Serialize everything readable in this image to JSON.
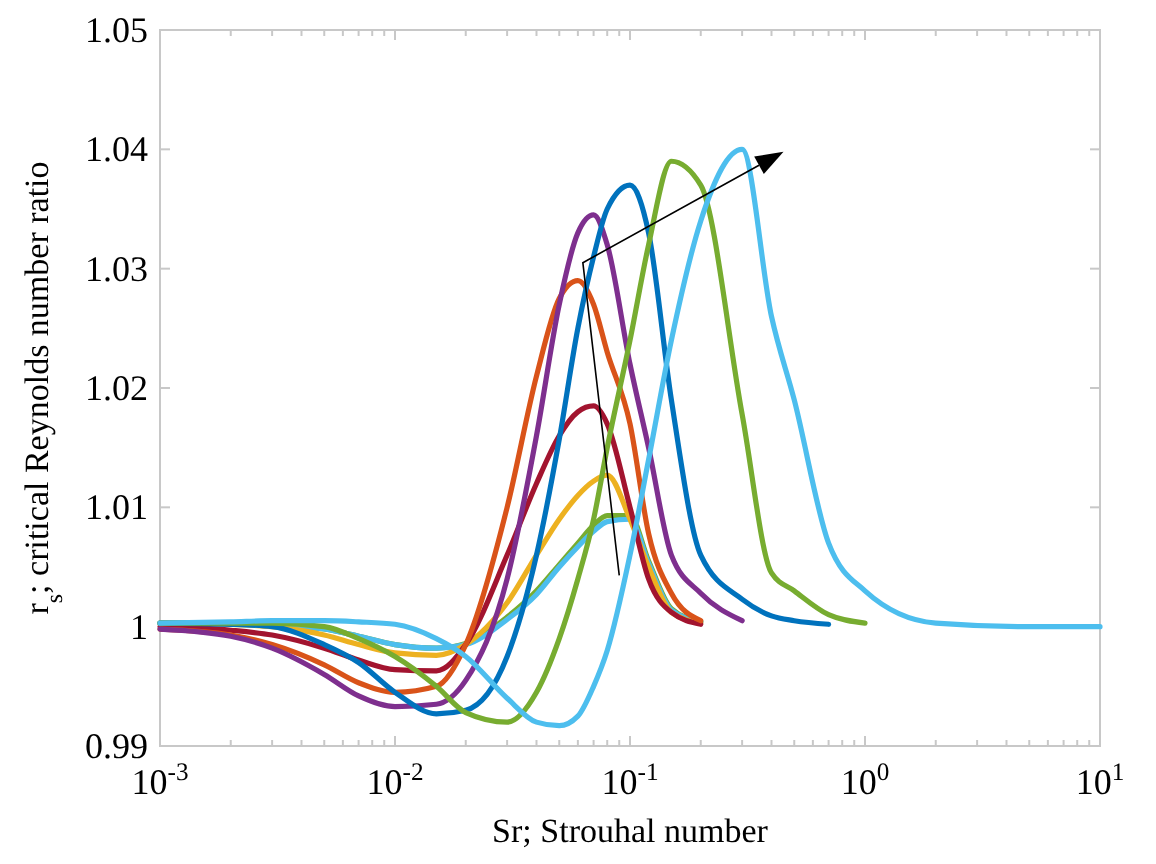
{
  "chart_data": {
    "type": "line",
    "xlabel": "Sr; Strouhal number",
    "ylabel": "r$_{s}$; critical Reynolds number ratio",
    "log": "x",
    "grid": false,
    "marker": "none",
    "line_style": "solid",
    "x": [
      0.001,
      0.002,
      0.003,
      0.005,
      0.007,
      0.01,
      0.015,
      0.02,
      0.03,
      0.04,
      0.05,
      0.06,
      0.07,
      0.08,
      0.1,
      0.12,
      0.15,
      0.2,
      0.3,
      0.4,
      0.5,
      0.7,
      1,
      2,
      5,
      10
    ],
    "xlim": [
      0.001,
      10
    ],
    "ylim": [
      0.99,
      1.05
    ],
    "xticks": [
      {
        "value": 0.001,
        "label": "10$^{-3}$"
      },
      {
        "value": 0.002,
        "label": null
      },
      {
        "value": 0.003,
        "label": null
      },
      {
        "value": 0.004,
        "label": null
      },
      {
        "value": 0.005,
        "label": null
      },
      {
        "value": 0.006,
        "label": null
      },
      {
        "value": 0.007,
        "label": null
      },
      {
        "value": 0.008,
        "label": null
      },
      {
        "value": 0.009,
        "label": null
      },
      {
        "value": 0.01,
        "label": "10$^{-2}$"
      },
      {
        "value": 0.02,
        "label": null
      },
      {
        "value": 0.03,
        "label": null
      },
      {
        "value": 0.04,
        "label": null
      },
      {
        "value": 0.05,
        "label": null
      },
      {
        "value": 0.06,
        "label": null
      },
      {
        "value": 0.07,
        "label": null
      },
      {
        "value": 0.08,
        "label": null
      },
      {
        "value": 0.09,
        "label": null
      },
      {
        "value": 0.1,
        "label": "10$^{-1}$"
      },
      {
        "value": 0.2,
        "label": null
      },
      {
        "value": 0.3,
        "label": null
      },
      {
        "value": 0.4,
        "label": null
      },
      {
        "value": 0.5,
        "label": null
      },
      {
        "value": 0.6,
        "label": null
      },
      {
        "value": 0.7,
        "label": null
      },
      {
        "value": 0.8,
        "label": null
      },
      {
        "value": 0.9,
        "label": null
      },
      {
        "value": 1,
        "label": "10$^{0}$"
      },
      {
        "value": 2,
        "label": null
      },
      {
        "value": 3,
        "label": null
      },
      {
        "value": 4,
        "label": null
      },
      {
        "value": 5,
        "label": null
      },
      {
        "value": 6,
        "label": null
      },
      {
        "value": 7,
        "label": null
      },
      {
        "value": 8,
        "label": null
      },
      {
        "value": 9,
        "label": null
      },
      {
        "value": 10,
        "label": "10$^{1}$"
      }
    ],
    "yticks": [
      0.99,
      1,
      1.01,
      1.02,
      1.03,
      1.04,
      1.05
    ],
    "series": [
      {
        "color": "#77ac30",
        "values": [
          1.0003,
          1.0003,
          1.0002,
          0.9998,
          0.9992,
          0.9985,
          0.9982,
          0.9986,
          1.0008,
          1.003,
          1.0052,
          1.007,
          1.0085,
          1.0093,
          1.0093,
          1.0055,
          1.0015,
          1.0004,
          null,
          null,
          null,
          null,
          null,
          null,
          null,
          null
        ]
      },
      {
        "color": "#4dbeee",
        "values": [
          1.0003,
          1.0003,
          1.0002,
          0.9998,
          0.9992,
          0.9985,
          0.9982,
          0.9985,
          1.0006,
          1.0027,
          1.005,
          1.0067,
          1.008,
          1.0088,
          1.009,
          1.0053,
          1.0014,
          1.0004,
          null,
          null,
          null,
          null,
          null,
          null,
          null,
          null
        ]
      },
      {
        "color": "#edb120",
        "values": [
          1.0003,
          1.0002,
          1.0,
          0.9993,
          0.9985,
          0.9978,
          0.9976,
          0.9985,
          1.002,
          1.006,
          1.009,
          1.011,
          1.0122,
          1.0127,
          1.009,
          1.005,
          1.0012,
          1.0003,
          null,
          null,
          null,
          null,
          null,
          null,
          null,
          null
        ]
      },
      {
        "color": "#a2142f",
        "values": [
          1.0,
          0.9997,
          0.9993,
          0.9982,
          0.9972,
          0.9964,
          0.9963,
          0.9985,
          1.006,
          1.012,
          1.016,
          1.018,
          1.0185,
          1.017,
          1.01,
          1.004,
          1.0012,
          1.0002,
          null,
          null,
          null,
          null,
          null,
          null,
          null,
          null
        ]
      },
      {
        "color": "#d95319",
        "values": [
          0.9998,
          0.9993,
          0.9985,
          0.9968,
          0.9953,
          0.9945,
          0.995,
          0.9985,
          1.01,
          1.021,
          1.0275,
          1.029,
          1.027,
          1.023,
          1.017,
          1.0078,
          1.0028,
          1.0005,
          null,
          null,
          null,
          null,
          null,
          null,
          null,
          null
        ]
      },
      {
        "color": "#7e2f8e",
        "values": [
          0.9998,
          0.9992,
          0.9982,
          0.996,
          0.9942,
          0.9933,
          0.9935,
          0.9955,
          1.004,
          1.016,
          1.027,
          1.033,
          1.0345,
          1.032,
          1.022,
          1.015,
          1.006,
          1.0028,
          1.0005,
          null,
          null,
          null,
          null,
          null,
          null,
          null
        ]
      },
      {
        "color": "#0072bd",
        "values": [
          1.0003,
          1.0002,
          1.0,
          0.9985,
          0.997,
          0.9945,
          0.9927,
          0.993,
          0.9975,
          1.006,
          1.0157,
          1.025,
          1.031,
          1.035,
          1.037,
          1.033,
          1.019,
          1.006,
          1.0023,
          1.0009,
          1.0005,
          1.0002,
          null,
          null,
          null,
          null
        ]
      },
      {
        "color": "#77ac30",
        "values": [
          1.0003,
          1.0003,
          1.0003,
          1.0,
          0.999,
          0.9975,
          0.995,
          0.9928,
          0.992,
          0.9945,
          0.999,
          1.004,
          1.009,
          1.015,
          1.024,
          1.032,
          1.039,
          1.037,
          1.0178,
          1.0045,
          1.003,
          1.001,
          1.0003,
          null,
          null,
          null
        ]
      },
      {
        "color": "#4dbeee",
        "values": [
          1.0003,
          1.0004,
          1.0005,
          1.0005,
          1.0004,
          1.0002,
          0.999,
          0.9975,
          0.994,
          0.992,
          0.9917,
          0.9925,
          0.995,
          0.998,
          1.006,
          1.014,
          1.024,
          1.034,
          1.04,
          1.026,
          1.019,
          1.007,
          1.003,
          1.0003,
          1.0,
          1.0
        ]
      }
    ]
  }
}
